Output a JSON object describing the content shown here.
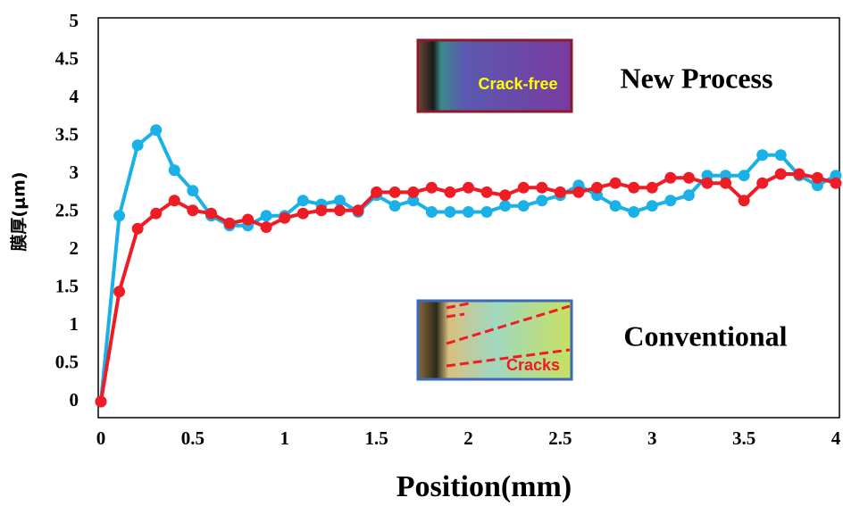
{
  "chart_data": {
    "type": "line",
    "x_label": "Position(mm)",
    "y_label": "膜厚(μm)",
    "x": [
      0,
      0.1,
      0.2,
      0.3,
      0.4,
      0.5,
      0.6,
      0.7,
      0.8,
      0.9,
      1.0,
      1.1,
      1.2,
      1.3,
      1.4,
      1.5,
      1.6,
      1.7,
      1.8,
      1.9,
      2.0,
      2.1,
      2.2,
      2.3,
      2.4,
      2.5,
      2.6,
      2.7,
      2.8,
      2.9,
      3.0,
      3.1,
      3.2,
      3.3,
      3.4,
      3.5,
      3.6,
      3.7,
      3.8,
      3.9,
      4.0
    ],
    "series": [
      {
        "name": "Conventional",
        "color": "#1ab0e8",
        "values": [
          0,
          2.45,
          3.38,
          3.58,
          3.05,
          2.78,
          2.45,
          2.32,
          2.32,
          2.45,
          2.45,
          2.65,
          2.6,
          2.65,
          2.5,
          2.72,
          2.58,
          2.65,
          2.5,
          2.5,
          2.5,
          2.5,
          2.58,
          2.58,
          2.65,
          2.72,
          2.85,
          2.72,
          2.58,
          2.5,
          2.58,
          2.65,
          2.72,
          2.98,
          2.98,
          2.98,
          3.25,
          3.25,
          2.98,
          2.85,
          2.98
        ]
      },
      {
        "name": "New Process",
        "color": "#ee1c24",
        "values": [
          0,
          1.45,
          2.28,
          2.48,
          2.65,
          2.52,
          2.48,
          2.35,
          2.4,
          2.3,
          2.42,
          2.48,
          2.52,
          2.52,
          2.52,
          2.76,
          2.76,
          2.76,
          2.82,
          2.76,
          2.82,
          2.76,
          2.72,
          2.82,
          2.82,
          2.76,
          2.76,
          2.82,
          2.88,
          2.82,
          2.82,
          2.95,
          2.95,
          2.88,
          2.88,
          2.65,
          2.88,
          3.0,
          3.0,
          2.95,
          2.88
        ]
      }
    ],
    "annotations": [
      "Crack-free",
      "Cracks"
    ],
    "xlim": [
      0,
      4
    ],
    "xticks": [
      0,
      0.5,
      1,
      1.5,
      2,
      2.5,
      3,
      3.5,
      4
    ],
    "ylim": [
      0,
      5
    ],
    "yticks": [
      0,
      0.5,
      1,
      1.5,
      2,
      2.5,
      3,
      3.5,
      4,
      4.5,
      5
    ],
    "grid": false
  }
}
